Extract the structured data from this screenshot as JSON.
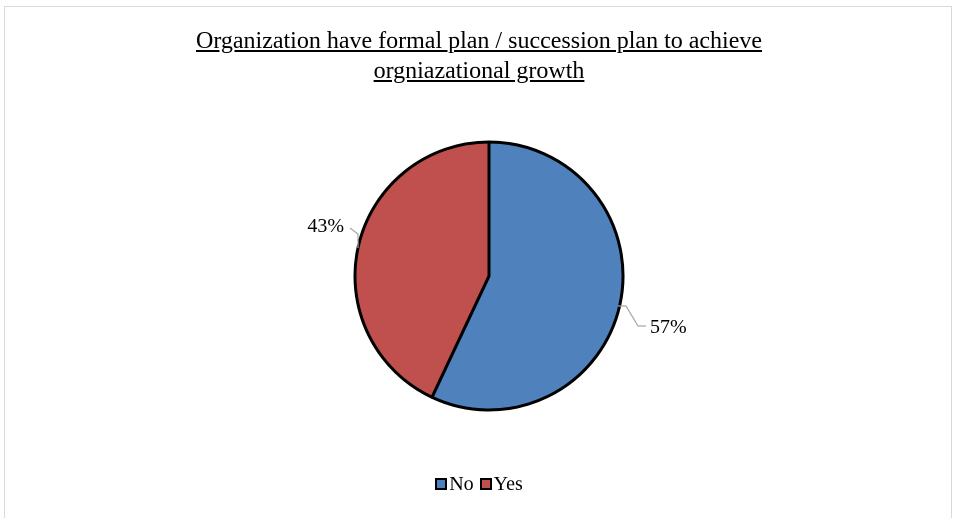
{
  "chart_data": {
    "type": "pie",
    "title_lines": [
      "Organization have formal plan / succession plan to achieve",
      "orgniazational growth"
    ],
    "slices": [
      {
        "name": "No",
        "value": 57,
        "label": "57%",
        "color": "#4f81bd"
      },
      {
        "name": "Yes",
        "value": 43,
        "label": "43%",
        "color": "#c0504d"
      }
    ],
    "legend_position": "bottom",
    "slice_outline_color": "#000000",
    "leader_line_color": "#a6a6a6"
  }
}
